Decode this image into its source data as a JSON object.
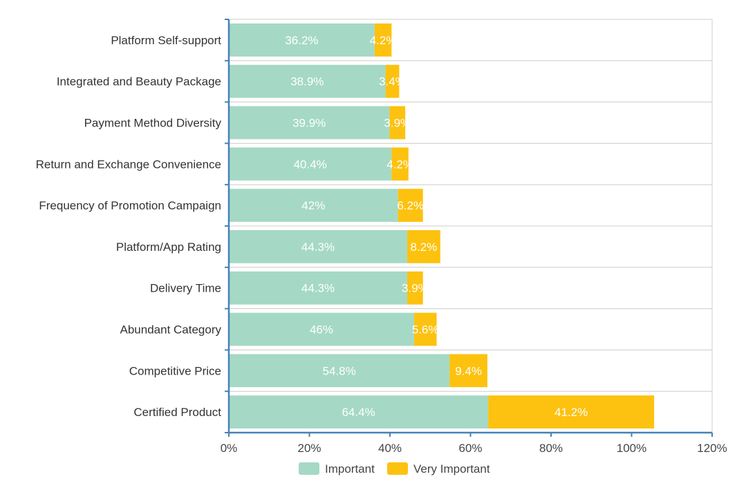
{
  "chart_data": {
    "type": "bar",
    "orientation": "horizontal",
    "stacked": true,
    "title": "",
    "xlabel": "",
    "ylabel": "",
    "xlim": [
      0,
      120
    ],
    "x_ticks": [
      "0%",
      "20%",
      "40%",
      "60%",
      "80%",
      "100%",
      "120%"
    ],
    "categories": [
      "Platform Self-support",
      "Integrated and Beauty Package",
      "Payment Method Diversity",
      "Return and Exchange Convenience",
      "Frequency of Promotion Campaign",
      "Platform/App Rating",
      "Delivery Time",
      "Abundant Category",
      "Competitive Price",
      "Certified Product"
    ],
    "series": [
      {
        "name": "Important",
        "color": "#a5d9c5",
        "values": [
          36.2,
          38.9,
          39.9,
          40.4,
          42,
          44.3,
          44.3,
          46,
          54.8,
          64.4
        ],
        "labels": [
          "36.2%",
          "38.9%",
          "39.9%",
          "40.4%",
          "42%",
          "44.3%",
          "44.3%",
          "46%",
          "54.8%",
          "64.4%"
        ]
      },
      {
        "name": "Very Important",
        "color": "#fdc20f",
        "values": [
          4.2,
          3.4,
          3.9,
          4.2,
          6.2,
          8.2,
          3.9,
          5.6,
          9.4,
          41.2
        ],
        "labels": [
          "4.2%",
          "3.4%",
          "3.9%",
          "4.2%",
          "6.2%",
          "8.2%",
          "3.9%",
          "5.6%",
          "9.4%",
          "41.2%"
        ]
      }
    ],
    "grid": true,
    "legend_position": "bottom"
  }
}
